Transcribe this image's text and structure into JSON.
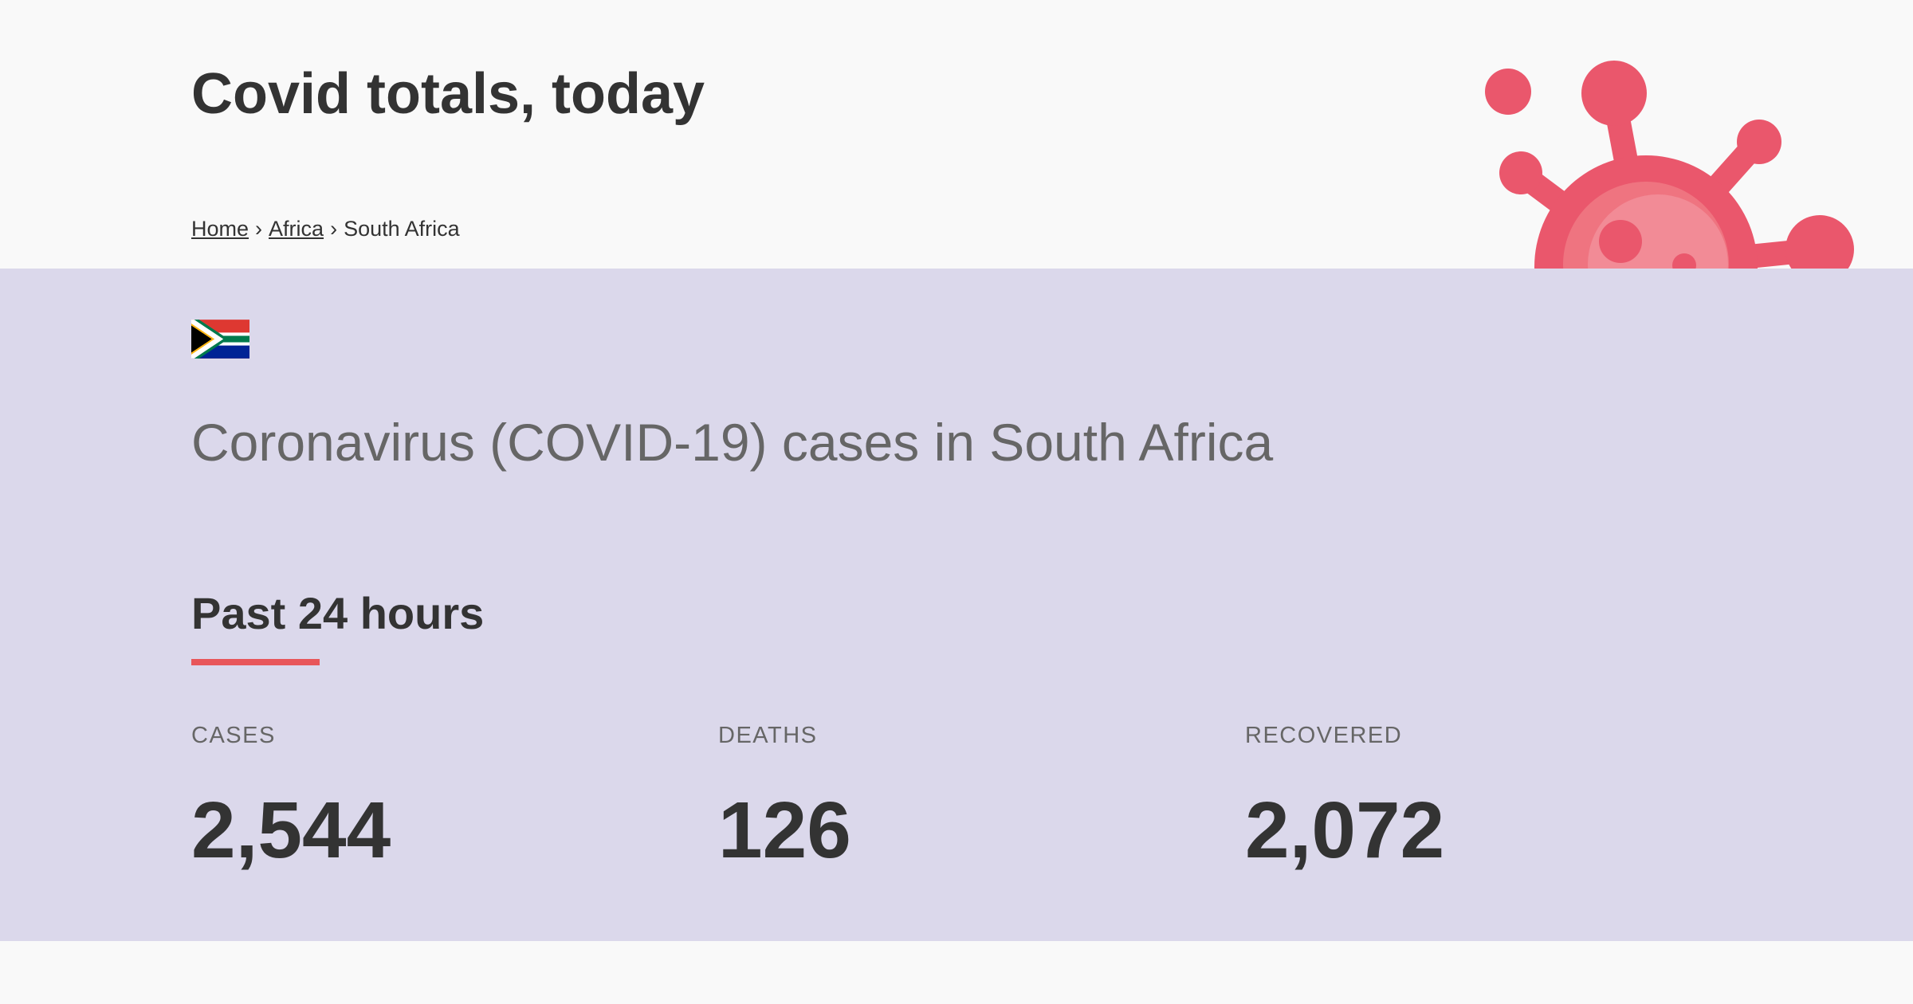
{
  "header": {
    "title": "Covid totals, today",
    "breadcrumb": {
      "home": "Home",
      "region": "Africa",
      "current": "South Africa",
      "separator": "›"
    }
  },
  "main": {
    "flag_icon": "south-africa-flag-icon",
    "subtitle": "Coronavirus (COVID-19) cases in South Africa",
    "period_heading": "Past 24 hours",
    "stats": [
      {
        "label": "CASES",
        "value": "2,544"
      },
      {
        "label": "DEATHS",
        "value": "126"
      },
      {
        "label": "RECOVERED",
        "value": "2,072"
      }
    ]
  },
  "decoration": {
    "virus_icon": "coronavirus-icon"
  },
  "colors": {
    "header_bg": "#f9f9f9",
    "main_bg": "#dbd8eb",
    "accent": "#e8565a",
    "virus": "#ea576c",
    "text_dark": "#333333",
    "text_muted": "#666666"
  }
}
